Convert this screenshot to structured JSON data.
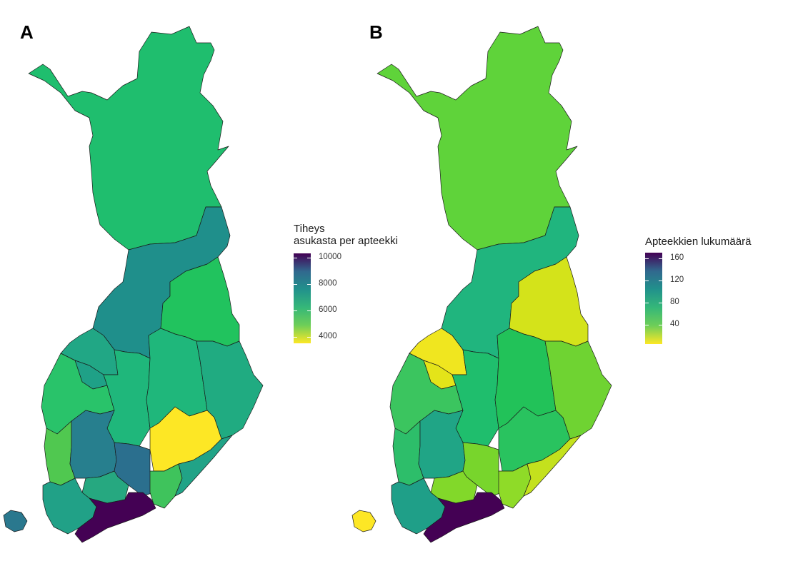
{
  "panels": {
    "a": {
      "label": "A",
      "legend": {
        "title_line1": "Tiheys",
        "title_line2": "asukasta per apteekki",
        "ticks": [
          "10000",
          "8000",
          "6000",
          "4000"
        ],
        "gradient": [
          "#440154",
          "#31688e",
          "#21918c",
          "#35b779",
          "#6ece58",
          "#fde725"
        ]
      },
      "regions": {
        "lapland": "#1fbe6e",
        "north_ostrobothnia": "#1f8f8b",
        "kainuu": "#21c35e",
        "ostrobothnia": "#21a785",
        "central_ostrobothnia": "#1fa187",
        "south_ostrobothnia": "#29c36a",
        "central_finland": "#1fb77b",
        "north_savo": "#1fb77b",
        "north_karelia": "#20ab81",
        "satakunta": "#50c850",
        "pirkanmaa": "#277f8e",
        "kanta_hame": "#2b6f8e",
        "paijat_hame": "#26a880",
        "south_savo": "#fde725",
        "kymenlaakso": "#3fc35c",
        "south_karelia": "#21a387",
        "southwest_finland": "#21a187",
        "uusimaa": "#440154",
        "aland": "#2a788e"
      }
    },
    "b": {
      "label": "B",
      "legend": {
        "title": "Apteekkien lukumäärä",
        "ticks": [
          "160",
          "120",
          "80",
          "40"
        ],
        "gradient": [
          "#440154",
          "#31688e",
          "#21918c",
          "#35b779",
          "#6ece58",
          "#fde725"
        ]
      },
      "regions": {
        "lapland": "#5fd33a",
        "north_ostrobothnia": "#20b57e",
        "kainuu": "#d4e31a",
        "ostrobothnia": "#f0e61f",
        "central_ostrobothnia": "#e4e419",
        "south_ostrobothnia": "#3bc55f",
        "central_finland": "#1fbe6d",
        "north_savo": "#22c259",
        "north_karelia": "#6fd332",
        "satakunta": "#2dbe6a",
        "pirkanmaa": "#20a586",
        "kanta_hame": "#78d52c",
        "paijat_hame": "#82d82a",
        "south_savo": "#29c35f",
        "kymenlaakso": "#8fdb28",
        "south_karelia": "#c4e11d",
        "southwest_finland": "#1f9f88",
        "uusimaa": "#440154",
        "aland": "#fde725"
      }
    }
  }
}
